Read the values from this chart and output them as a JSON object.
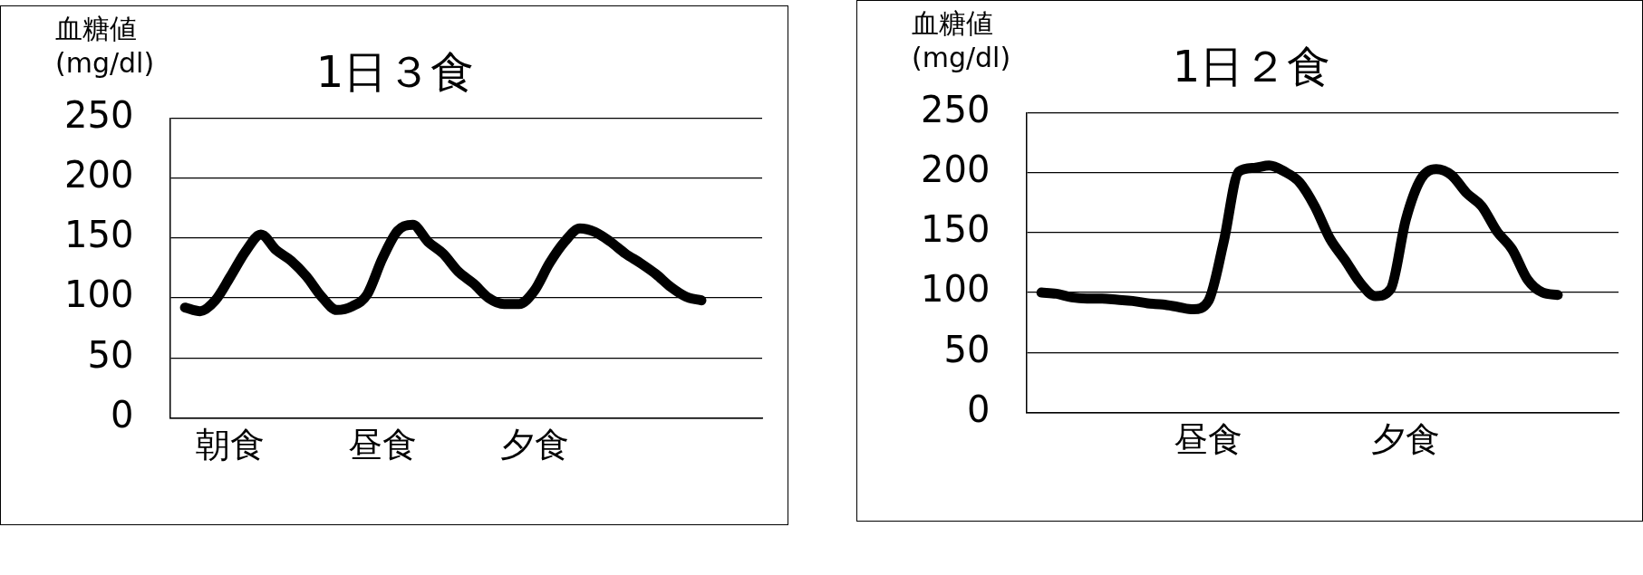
{
  "chart_data": [
    {
      "type": "line",
      "title": "1日３食",
      "ylabel": "血糖値\n(mg/dl)",
      "categories": [
        null,
        null,
        null,
        null,
        "朝食",
        null,
        null,
        null,
        null,
        null,
        null,
        null,
        null,
        null,
        "昼食",
        null,
        null,
        null,
        null,
        null,
        null,
        null,
        null,
        null,
        "夕食",
        null,
        null,
        null,
        null,
        null,
        null,
        null,
        null,
        null,
        null,
        null,
        null,
        null,
        null,
        null
      ],
      "series": [
        {
          "color": "#000000",
          "values": [
            null,
            92,
            89,
            98,
            118,
            139,
            153,
            140,
            131,
            118,
            101,
            90,
            93,
            103,
            133,
            156,
            161,
            147,
            137,
            122,
            112,
            100,
            95,
            95,
            106,
            129,
            147,
            158,
            155,
            147,
            137,
            129,
            120,
            109,
            101,
            98,
            null,
            null,
            null,
            null
          ]
        }
      ],
      "ylim": [
        0,
        250
      ],
      "yticks": [
        0,
        50,
        100,
        150,
        200,
        250
      ],
      "grid": "y",
      "marker": "none",
      "line_style": "solid"
    },
    {
      "type": "line",
      "title": "1日２食",
      "ylabel": "血糖値\n(mg/dl)",
      "categories": [
        null,
        null,
        null,
        null,
        null,
        null,
        null,
        null,
        null,
        null,
        null,
        null,
        "昼食",
        null,
        null,
        null,
        null,
        null,
        null,
        null,
        null,
        null,
        null,
        null,
        null,
        "夕食",
        null,
        null,
        null,
        null,
        null,
        null,
        null,
        null,
        null,
        null,
        null,
        null,
        null,
        null
      ],
      "series": [
        {
          "color": "#000000",
          "values": [
            null,
            100,
            99,
            96,
            95,
            95,
            94,
            93,
            91,
            90,
            88,
            86,
            93,
            142,
            201,
            204,
            206,
            201,
            192,
            172,
            145,
            127,
            108,
            97,
            103,
            161,
            195,
            203,
            198,
            183,
            172,
            151,
            136,
            111,
            100,
            98,
            null,
            null,
            null,
            null
          ]
        }
      ],
      "ylim": [
        0,
        250
      ],
      "yticks": [
        0,
        50,
        100,
        150,
        200,
        250
      ],
      "grid": "y",
      "marker": "none",
      "line_style": "solid"
    }
  ]
}
